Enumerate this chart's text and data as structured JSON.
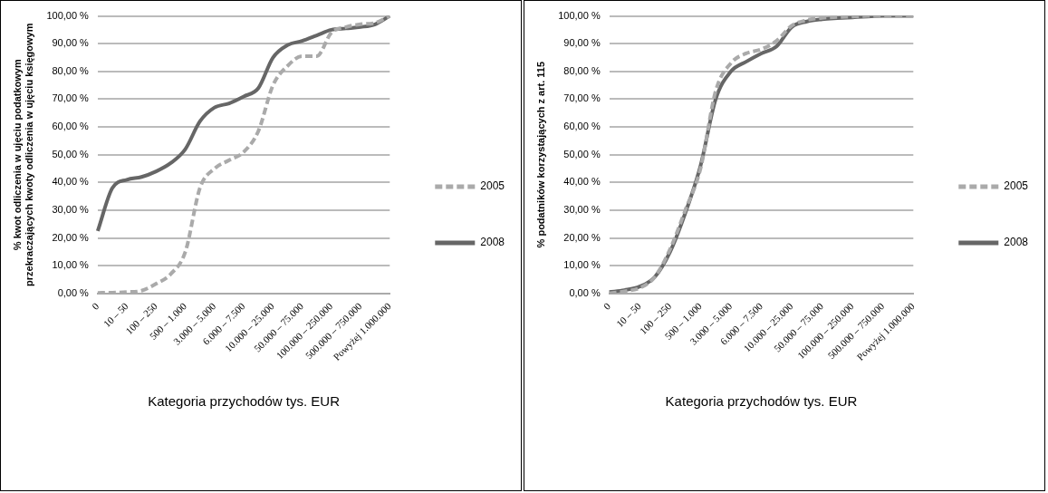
{
  "chart_data": [
    {
      "type": "line",
      "xlabel": "Kategoria przychodów tys. EUR",
      "ylabel": "% kwot odliczenia w ujęciu podatkowym przekraczających kwoty odliczenia w ujęciu księgowym",
      "categories": [
        "0",
        null,
        "10 – 50",
        null,
        "100 – 250",
        null,
        "500 – 1.000",
        null,
        "3.000 – 5.000",
        null,
        "6.000 – 7.500",
        null,
        "10.000 – 25.000",
        null,
        "50.000 – 75.000",
        null,
        "100.000 – 250.000",
        null,
        "500.000 – 750.000",
        null,
        "Powyżej 1.000.000"
      ],
      "series": [
        {
          "name": "2005",
          "color": "#aaaaaa",
          "line_style": "dashed",
          "values": [
            0.2,
            0.3,
            0.5,
            1,
            3.5,
            7,
            15,
            38,
            45,
            48,
            51,
            58.5,
            75,
            82,
            85.5,
            85.5,
            94,
            96,
            97,
            97.5,
            100
          ]
        },
        {
          "name": "2008",
          "color": "#666666",
          "line_style": "solid",
          "values": [
            22.5,
            38,
            41,
            42,
            44,
            47,
            52,
            62,
            67,
            68.5,
            71,
            74,
            85,
            89.5,
            91,
            93,
            95,
            95.5,
            96,
            97,
            100
          ]
        }
      ],
      "ylim": [
        0,
        100
      ],
      "yticks": [
        {
          "value": 0,
          "label": "0,00 %"
        },
        {
          "value": 10,
          "label": "10,00 %"
        },
        {
          "value": 20,
          "label": "20,00 %"
        },
        {
          "value": 30,
          "label": "30,00 %"
        },
        {
          "value": 40,
          "label": "40,00 %"
        },
        {
          "value": 50,
          "label": "50,00 %"
        },
        {
          "value": 60,
          "label": "60,00 %"
        },
        {
          "value": 70,
          "label": "70,00 %"
        },
        {
          "value": 80,
          "label": "80,00 %"
        },
        {
          "value": 90,
          "label": "90,00 %"
        },
        {
          "value": 100,
          "label": "100,00 %"
        }
      ],
      "grid": "y",
      "legend": "right",
      "marker": "none"
    },
    {
      "type": "line",
      "xlabel": "Kategoria przychodów tys. EUR",
      "ylabel": "% podatników korzystających z art. 115",
      "categories": [
        "0",
        null,
        "10 – 50",
        null,
        "100 – 250",
        null,
        "500 – 1.000",
        null,
        "3.000 – 5.000",
        null,
        "6.000 – 7.500",
        null,
        "10.000 – 25.000",
        null,
        "50.000 – 75.000",
        null,
        "100.000 – 250.000",
        null,
        "500.000 – 750.000",
        null,
        "Powyżej 1.000.000"
      ],
      "series": [
        {
          "name": "2005",
          "color": "#aaaaaa",
          "line_style": "dashed",
          "values": [
            0,
            0.8,
            2,
            6,
            16,
            30,
            45,
            73,
            83,
            86.5,
            88,
            91,
            96.5,
            98.5,
            99.3,
            99.6,
            99.8,
            100,
            100,
            100,
            100
          ]
        },
        {
          "name": "2008",
          "color": "#666666",
          "line_style": "solid",
          "values": [
            0.5,
            1.2,
            2.5,
            6,
            15,
            29,
            46,
            70,
            80,
            83.5,
            86.5,
            89,
            96,
            98,
            98.8,
            99.2,
            99.5,
            99.8,
            100,
            100,
            100
          ]
        }
      ],
      "ylim": [
        0,
        100
      ],
      "yticks": [
        {
          "value": 0,
          "label": "0,00 %"
        },
        {
          "value": 10,
          "label": "10,00 %"
        },
        {
          "value": 20,
          "label": "20,00 %"
        },
        {
          "value": 30,
          "label": "30,00 %"
        },
        {
          "value": 40,
          "label": "40,00 %"
        },
        {
          "value": 50,
          "label": "50,00 %"
        },
        {
          "value": 60,
          "label": "60,00 %"
        },
        {
          "value": 70,
          "label": "70,00 %"
        },
        {
          "value": 80,
          "label": "80,00 %"
        },
        {
          "value": 90,
          "label": "90,00 %"
        },
        {
          "value": 100,
          "label": "100,00 %"
        }
      ],
      "grid": "y",
      "legend": "right",
      "marker": "none"
    }
  ]
}
